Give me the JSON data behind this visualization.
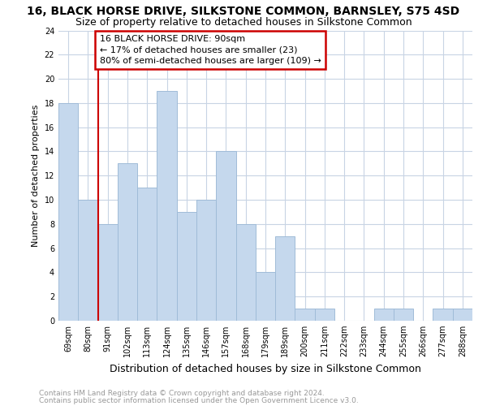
{
  "title": "16, BLACK HORSE DRIVE, SILKSTONE COMMON, BARNSLEY, S75 4SD",
  "subtitle": "Size of property relative to detached houses in Silkstone Common",
  "xlabel": "Distribution of detached houses by size in Silkstone Common",
  "ylabel": "Number of detached properties",
  "categories": [
    "69sqm",
    "80sqm",
    "91sqm",
    "102sqm",
    "113sqm",
    "124sqm",
    "135sqm",
    "146sqm",
    "157sqm",
    "168sqm",
    "179sqm",
    "189sqm",
    "200sqm",
    "211sqm",
    "222sqm",
    "233sqm",
    "244sqm",
    "255sqm",
    "266sqm",
    "277sqm",
    "288sqm"
  ],
  "values": [
    18,
    10,
    8,
    13,
    11,
    19,
    9,
    10,
    14,
    8,
    4,
    7,
    1,
    1,
    0,
    0,
    1,
    1,
    0,
    1,
    1
  ],
  "bar_color": "#c5d8ed",
  "bar_edge_color": "#a0bcd8",
  "subject_index": 2,
  "subject_line_color": "#cc0000",
  "annotation_line1": "16 BLACK HORSE DRIVE: 90sqm",
  "annotation_line2": "← 17% of detached houses are smaller (23)",
  "annotation_line3": "80% of semi-detached houses are larger (109) →",
  "annotation_box_color": "#cc0000",
  "ylim": [
    0,
    24
  ],
  "yticks": [
    0,
    2,
    4,
    6,
    8,
    10,
    12,
    14,
    16,
    18,
    20,
    22,
    24
  ],
  "grid_color": "#c8d4e4",
  "footer1": "Contains HM Land Registry data © Crown copyright and database right 2024.",
  "footer2": "Contains public sector information licensed under the Open Government Licence v3.0.",
  "title_fontsize": 10,
  "subtitle_fontsize": 9,
  "xlabel_fontsize": 9,
  "ylabel_fontsize": 8,
  "tick_fontsize": 7,
  "annotation_fontsize": 8,
  "footer_fontsize": 6.5
}
